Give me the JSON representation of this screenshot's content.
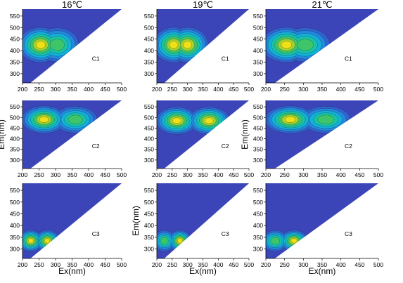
{
  "figure": {
    "column_titles": [
      "16℃",
      "19℃",
      "21℃"
    ],
    "xlabel": "Ex(nm)",
    "ylabel": "Em(nm)",
    "component_labels": [
      "C1",
      "C2",
      "C3"
    ]
  },
  "chart_data": [
    {
      "type": "heatmap",
      "title": "16℃",
      "panel_label": "C1",
      "xlim": [
        200,
        500
      ],
      "ylim": [
        260,
        580
      ],
      "x_ticks": [
        200,
        250,
        300,
        350,
        400,
        450,
        500
      ],
      "y_ticks": [
        300,
        350,
        400,
        450,
        500,
        550
      ],
      "xlabel": "",
      "ylabel": "",
      "peaks": [
        {
          "ex": 255,
          "em": 425,
          "level": "high"
        },
        {
          "ex": 305,
          "em": 425,
          "level": "medium"
        }
      ]
    },
    {
      "type": "heatmap",
      "title": "19℃",
      "panel_label": "C1",
      "xlim": [
        200,
        500
      ],
      "ylim": [
        260,
        580
      ],
      "x_ticks": [
        200,
        250,
        300,
        350,
        400,
        450,
        500
      ],
      "y_ticks": [
        300,
        350,
        400,
        450,
        500,
        550
      ],
      "xlabel": "",
      "ylabel": "",
      "peaks": [
        {
          "ex": 255,
          "em": 425,
          "level": "high"
        },
        {
          "ex": 300,
          "em": 425,
          "level": "high"
        }
      ]
    },
    {
      "type": "heatmap",
      "title": "21℃",
      "panel_label": "C1",
      "xlim": [
        200,
        500
      ],
      "ylim": [
        260,
        580
      ],
      "x_ticks": [
        200,
        250,
        300,
        350,
        400,
        450,
        500
      ],
      "y_ticks": [
        300,
        350,
        400,
        450,
        500,
        550
      ],
      "xlabel": "",
      "ylabel": "",
      "peaks": [
        {
          "ex": 255,
          "em": 425,
          "level": "high"
        },
        {
          "ex": 305,
          "em": 425,
          "level": "medium"
        }
      ]
    },
    {
      "type": "heatmap",
      "title": "",
      "panel_label": "C2",
      "xlim": [
        200,
        500
      ],
      "ylim": [
        260,
        580
      ],
      "x_ticks": [
        200,
        250,
        300,
        350,
        400,
        450,
        500
      ],
      "y_ticks": [
        300,
        350,
        400,
        450,
        500,
        550
      ],
      "xlabel": "",
      "ylabel": "Em(nm)",
      "peaks": [
        {
          "ex": 265,
          "em": 490,
          "level": "high"
        },
        {
          "ex": 360,
          "em": 490,
          "level": "medium"
        }
      ]
    },
    {
      "type": "heatmap",
      "title": "",
      "panel_label": "C2",
      "xlim": [
        200,
        500
      ],
      "ylim": [
        260,
        580
      ],
      "x_ticks": [
        200,
        250,
        300,
        350,
        400,
        450,
        500
      ],
      "y_ticks": [
        300,
        350,
        400,
        450,
        500,
        550
      ],
      "xlabel": "",
      "ylabel": "",
      "peaks": [
        {
          "ex": 265,
          "em": 485,
          "level": "high"
        },
        {
          "ex": 370,
          "em": 485,
          "level": "high"
        }
      ]
    },
    {
      "type": "heatmap",
      "title": "",
      "panel_label": "C2",
      "xlim": [
        200,
        500
      ],
      "ylim": [
        260,
        580
      ],
      "x_ticks": [
        200,
        250,
        300,
        350,
        400,
        450,
        500
      ],
      "y_ticks": [
        300,
        350,
        400,
        450,
        500,
        550
      ],
      "xlabel": "",
      "ylabel": "Em(nm)",
      "peaks": [
        {
          "ex": 265,
          "em": 490,
          "level": "high"
        },
        {
          "ex": 360,
          "em": 490,
          "level": "medium"
        }
      ]
    },
    {
      "type": "heatmap",
      "title": "",
      "panel_label": "C3",
      "xlim": [
        200,
        500
      ],
      "ylim": [
        260,
        580
      ],
      "x_ticks": [
        200,
        250,
        300,
        350,
        400,
        450,
        500
      ],
      "y_ticks": [
        300,
        350,
        400,
        450,
        500,
        550
      ],
      "xlabel": "Ex(nm)",
      "ylabel": "",
      "peaks": [
        {
          "ex": 225,
          "em": 335,
          "level": "high"
        },
        {
          "ex": 275,
          "em": 335,
          "level": "high"
        }
      ]
    },
    {
      "type": "heatmap",
      "title": "",
      "panel_label": "C3",
      "xlim": [
        200,
        500
      ],
      "ylim": [
        260,
        580
      ],
      "x_ticks": [
        200,
        250,
        300,
        350,
        400,
        450,
        500
      ],
      "y_ticks": [
        300,
        350,
        400,
        450,
        500,
        550
      ],
      "xlabel": "Ex(nm)",
      "ylabel": "Em(nm)",
      "peaks": [
        {
          "ex": 225,
          "em": 335,
          "level": "medium"
        },
        {
          "ex": 275,
          "em": 335,
          "level": "high"
        }
      ]
    },
    {
      "type": "heatmap",
      "title": "",
      "panel_label": "C3",
      "xlim": [
        200,
        500
      ],
      "ylim": [
        260,
        580
      ],
      "x_ticks": [
        200,
        250,
        300,
        350,
        400,
        450,
        500
      ],
      "y_ticks": [
        300,
        350,
        400,
        450,
        500,
        550
      ],
      "xlabel": "Ex(nm)",
      "ylabel": "",
      "peaks": [
        {
          "ex": 225,
          "em": 335,
          "level": "medium"
        },
        {
          "ex": 275,
          "em": 335,
          "level": "high"
        }
      ]
    }
  ],
  "colors": {
    "background": "#3b45b8",
    "levels": [
      "#3b45b8",
      "#2f64d0",
      "#2389dd",
      "#12b0da",
      "#18c3a8",
      "#3ec56a",
      "#a6d22e",
      "#f0e018"
    ],
    "contour_line": "#1a1a1a",
    "diagonal_fill": "#ffffff"
  }
}
